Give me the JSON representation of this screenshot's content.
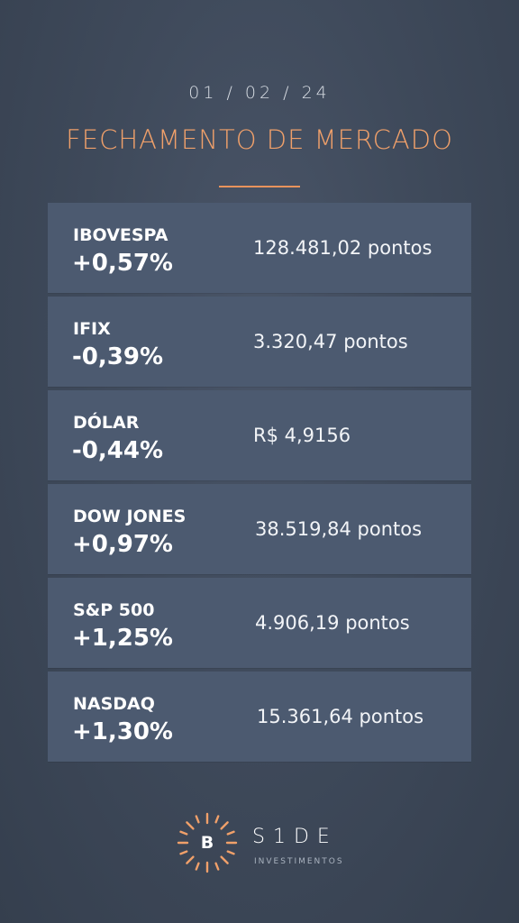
{
  "header": {
    "date": "01 / 02 / 24",
    "title": "FECHAMENTO DE MERCADO"
  },
  "rows": [
    {
      "name": "IBOVESPA",
      "change": "+0,57%",
      "value": "128.481,02 pontos"
    },
    {
      "name": "IFIX",
      "change": "-0,39%",
      "value": "3.320,47 pontos"
    },
    {
      "name": "DÓLAR",
      "change": "-0,44%",
      "value": "R$ 4,9156"
    },
    {
      "name": "DOW JONES",
      "change": "+0,97%",
      "value": "38.519,84 pontos"
    },
    {
      "name": "S&P 500",
      "change": "+1,25%",
      "value": "4.906,19 pontos"
    },
    {
      "name": "NASDAQ",
      "change": "+1,30%",
      "value": "15.361,64 pontos"
    }
  ],
  "logo": {
    "letter": "B",
    "word": "S1DE",
    "sub": "INVESTIMENTOS"
  },
  "colors": {
    "accent": "#f0a06a",
    "row_bg": "#4c5a70",
    "background": "#3f4a5b"
  },
  "icons": {
    "logo_mark": "sun-rays-icon"
  }
}
